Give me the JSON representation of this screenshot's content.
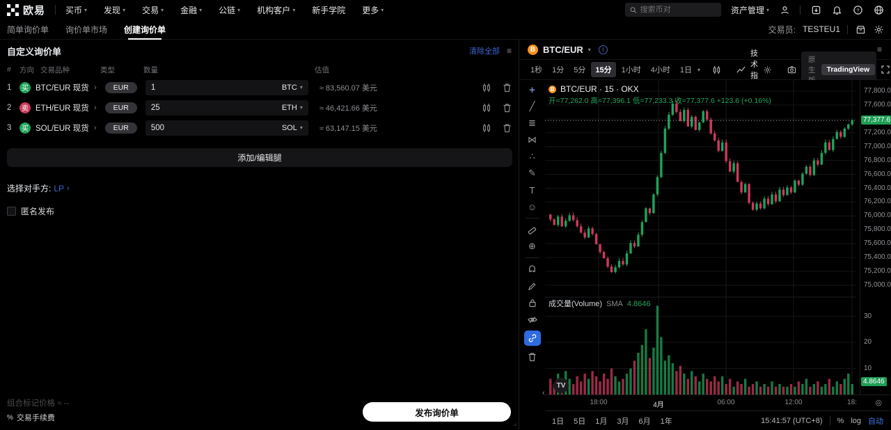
{
  "colors": {
    "accent_blue": "#3c66cf",
    "up": "#1fa35a",
    "down": "#cd3a5c",
    "btc_orange": "#f7931a"
  },
  "topnav": {
    "brand": "欧易",
    "menu": [
      {
        "label": "买币"
      },
      {
        "label": "发现"
      },
      {
        "label": "交易"
      },
      {
        "label": "金融"
      },
      {
        "label": "公链"
      },
      {
        "label": "机构客户"
      },
      {
        "label": "新手学院"
      },
      {
        "label": "更多"
      }
    ],
    "search_placeholder": "搜索币对",
    "assets_label": "资产管理"
  },
  "subnav": {
    "tabs": [
      {
        "label": "简单询价单"
      },
      {
        "label": "询价单市场"
      },
      {
        "label": "创建询价单"
      }
    ],
    "trader_label": "交易员:",
    "trader_value": "TESTEU1"
  },
  "rfq": {
    "title": "自定义询价单",
    "clear_all": "清除全部",
    "columns": {
      "num": "#",
      "side": "方向",
      "instrument": "交易品种",
      "type": "类型",
      "amount": "数量",
      "value": "估值"
    },
    "legs": [
      {
        "index": "1",
        "side": "买",
        "pair": "BTC/EUR 现货",
        "pay": "EUR",
        "amount": "1",
        "ccy": "BTC",
        "value": "≈ 83,560.07 美元"
      },
      {
        "index": "2",
        "side": "卖",
        "pair": "ETH/EUR 现货",
        "pay": "EUR",
        "amount": "25",
        "ccy": "ETH",
        "value": "≈ 46,421.66 美元"
      },
      {
        "index": "3",
        "side": "买",
        "pair": "SOL/EUR 现货",
        "pay": "EUR",
        "amount": "500",
        "ccy": "SOL",
        "value": "≈ 63,147.15 美元"
      }
    ],
    "add_edit_legs": "添加/编辑腿",
    "counterparty_label": "选择对手方:",
    "counterparty_value": "LP",
    "anonymous_label": "匿名发布",
    "mark_price_label": "组合标记价格",
    "mark_price_value": "≈ --",
    "fee_label": "交易手续费",
    "publish": "发布询价单"
  },
  "chart": {
    "symbol": "BTC/EUR",
    "intervals": [
      {
        "label": "1秒"
      },
      {
        "label": "1分"
      },
      {
        "label": "5分"
      },
      {
        "label": "15分"
      },
      {
        "label": "1小时"
      },
      {
        "label": "4小时"
      },
      {
        "label": "1日"
      }
    ],
    "indicators_label": "技术指标",
    "native_label": "原生版",
    "tv_label": "TradingView",
    "legend_title": "BTC/EUR · 15 · OKX",
    "ohlc_text": "开=77,262.0 高=77,396.1 低=77,233.3",
    "close_text": "收=77,377.6 +123.6 (+0.16%)",
    "volume_title": "成交量(Volume)",
    "volume_sma_label": "SMA",
    "volume_sma_value": "4.8646",
    "tv_logo": "TV",
    "ranges": [
      {
        "label": "1日"
      },
      {
        "label": "5日"
      },
      {
        "label": "1月"
      },
      {
        "label": "3月"
      },
      {
        "label": "6月"
      },
      {
        "label": "1年"
      }
    ],
    "clock": "15:41:57 (UTC+8)",
    "pct": "%",
    "log": "log",
    "auto": "自动"
  },
  "chart_data": {
    "type": "candlestick",
    "title": "BTC/EUR · 15 · OKX",
    "symbol": "BTC/EUR",
    "interval": "15m",
    "exchange": "OKX",
    "last": {
      "open": 77262.0,
      "high": 77396.1,
      "low": 77233.3,
      "close": 77377.6,
      "change": 123.6,
      "change_pct": 0.16
    },
    "open_first": 76020,
    "closes": [
      75950,
      75870,
      75990,
      75850,
      75930,
      76010,
      75940,
      75850,
      75760,
      75690,
      75820,
      75740,
      75590,
      75480,
      75390,
      75270,
      75190,
      75260,
      75350,
      75300,
      75460,
      75610,
      75560,
      75730,
      75910,
      76110,
      76040,
      76310,
      76560,
      76910,
      77260,
      77460,
      77620,
      77500,
      77370,
      77530,
      77290,
      77430,
      77240,
      77350,
      77510,
      77390,
      77190,
      77090,
      76940,
      77060,
      76790,
      76640,
      76760,
      76490,
      76340,
      76460,
      76190,
      76090,
      76180,
      76110,
      76250,
      76170,
      76310,
      76210,
      76380,
      76300,
      76410,
      76340,
      76510,
      76450,
      76610,
      76710,
      76590,
      76800,
      76740,
      76910,
      77060,
      76950,
      77110,
      77210,
      77140,
      77260,
      77320,
      77377.6
    ],
    "volumes": [
      6,
      4,
      8,
      5,
      9,
      6,
      4,
      7,
      5,
      8,
      6,
      9,
      7,
      5,
      8,
      6,
      10,
      7,
      5,
      6,
      8,
      10,
      13,
      16,
      19,
      25,
      14,
      18,
      34,
      22,
      13,
      15,
      12,
      9,
      11,
      8,
      6,
      9,
      7,
      5,
      8,
      6,
      5,
      7,
      5,
      7,
      4,
      6,
      3,
      5,
      4,
      6,
      3,
      4,
      5,
      3,
      4,
      3,
      5,
      3,
      4,
      3,
      3,
      4,
      3,
      5,
      4,
      6,
      3,
      4,
      5,
      3,
      4,
      6,
      3,
      5,
      4,
      6,
      8,
      4
    ],
    "volume_sma": 4.8646,
    "last_price": 77377.6,
    "price_axis_labels": [
      77800,
      77600,
      77200,
      77000,
      76800,
      76600,
      76400,
      76200,
      76000,
      75800,
      75600,
      75400,
      75200,
      75000
    ],
    "price_grid": [
      77800,
      77600,
      77400,
      77200,
      77000,
      76800,
      76600,
      76400,
      76200,
      76000,
      75800,
      75600,
      75400,
      75200,
      75000
    ],
    "volume_axis_labels": [
      30,
      20,
      10
    ],
    "x_ticks": [
      {
        "label": "18:00",
        "x": 77
      },
      {
        "label": "4月",
        "x": 163,
        "major": true
      },
      {
        "label": "06:00",
        "x": 260
      },
      {
        "label": "12:00",
        "x": 357
      },
      {
        "label": "18:",
        "x": 441
      }
    ],
    "y_range": [
      74850,
      77960
    ],
    "up_color": "#1fa35a",
    "down_color": "#cd3a5c",
    "grid": true,
    "legend_position": "top-left"
  }
}
